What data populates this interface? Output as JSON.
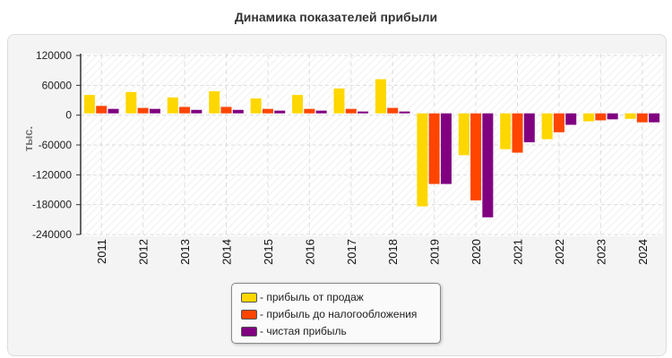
{
  "chart_data": {
    "type": "bar",
    "title": "Динамика показателей прибыли",
    "ylabel": "тыс.",
    "xlabel": "",
    "ylim": [
      -240000,
      120000
    ],
    "yticks": [
      "120000",
      "60000",
      "0",
      "-60000",
      "-120000",
      "-180000",
      "-240000"
    ],
    "grid": true,
    "legend_position": "bottom",
    "categories": [
      "2011",
      "2012",
      "2013",
      "2014",
      "2015",
      "2016",
      "2017",
      "2018",
      "2019",
      "2020",
      "2021",
      "2022",
      "2023",
      "2024"
    ],
    "series": [
      {
        "name": "- прибыль от продаж",
        "color": "#ffd700",
        "values": [
          37000,
          43000,
          32000,
          44500,
          30000,
          37000,
          50000,
          68700,
          -187000,
          -84000,
          -72000,
          -52000,
          -16000,
          -11000
        ]
      },
      {
        "name": "- прибыль до налогообложения",
        "color": "#ff4500",
        "values": [
          15000,
          11000,
          13000,
          13000,
          9000,
          9000,
          9000,
          11000,
          -142000,
          -175000,
          -79000,
          -38000,
          -14000,
          -18000
        ]
      },
      {
        "name": "- чистая прибыль",
        "color": "#800080",
        "values": [
          9000,
          9000,
          7000,
          7000,
          5500,
          5500,
          3700,
          3700,
          -142000,
          -209000,
          -58000,
          -23000,
          -12000,
          -18000
        ]
      }
    ]
  }
}
